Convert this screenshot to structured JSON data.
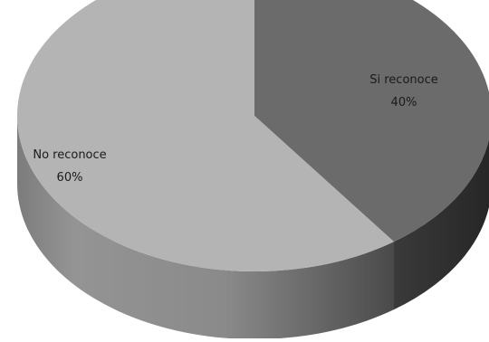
{
  "chart_data": {
    "type": "pie",
    "style": "3d",
    "title": "",
    "legend": "none",
    "slices": [
      {
        "label": "Si reconoce",
        "value": 40,
        "value_label": "40%",
        "color": "#6b6b6b"
      },
      {
        "label": "No reconoce",
        "value": 60,
        "value_label": "60%",
        "color": "#b4b4b4"
      }
    ]
  }
}
